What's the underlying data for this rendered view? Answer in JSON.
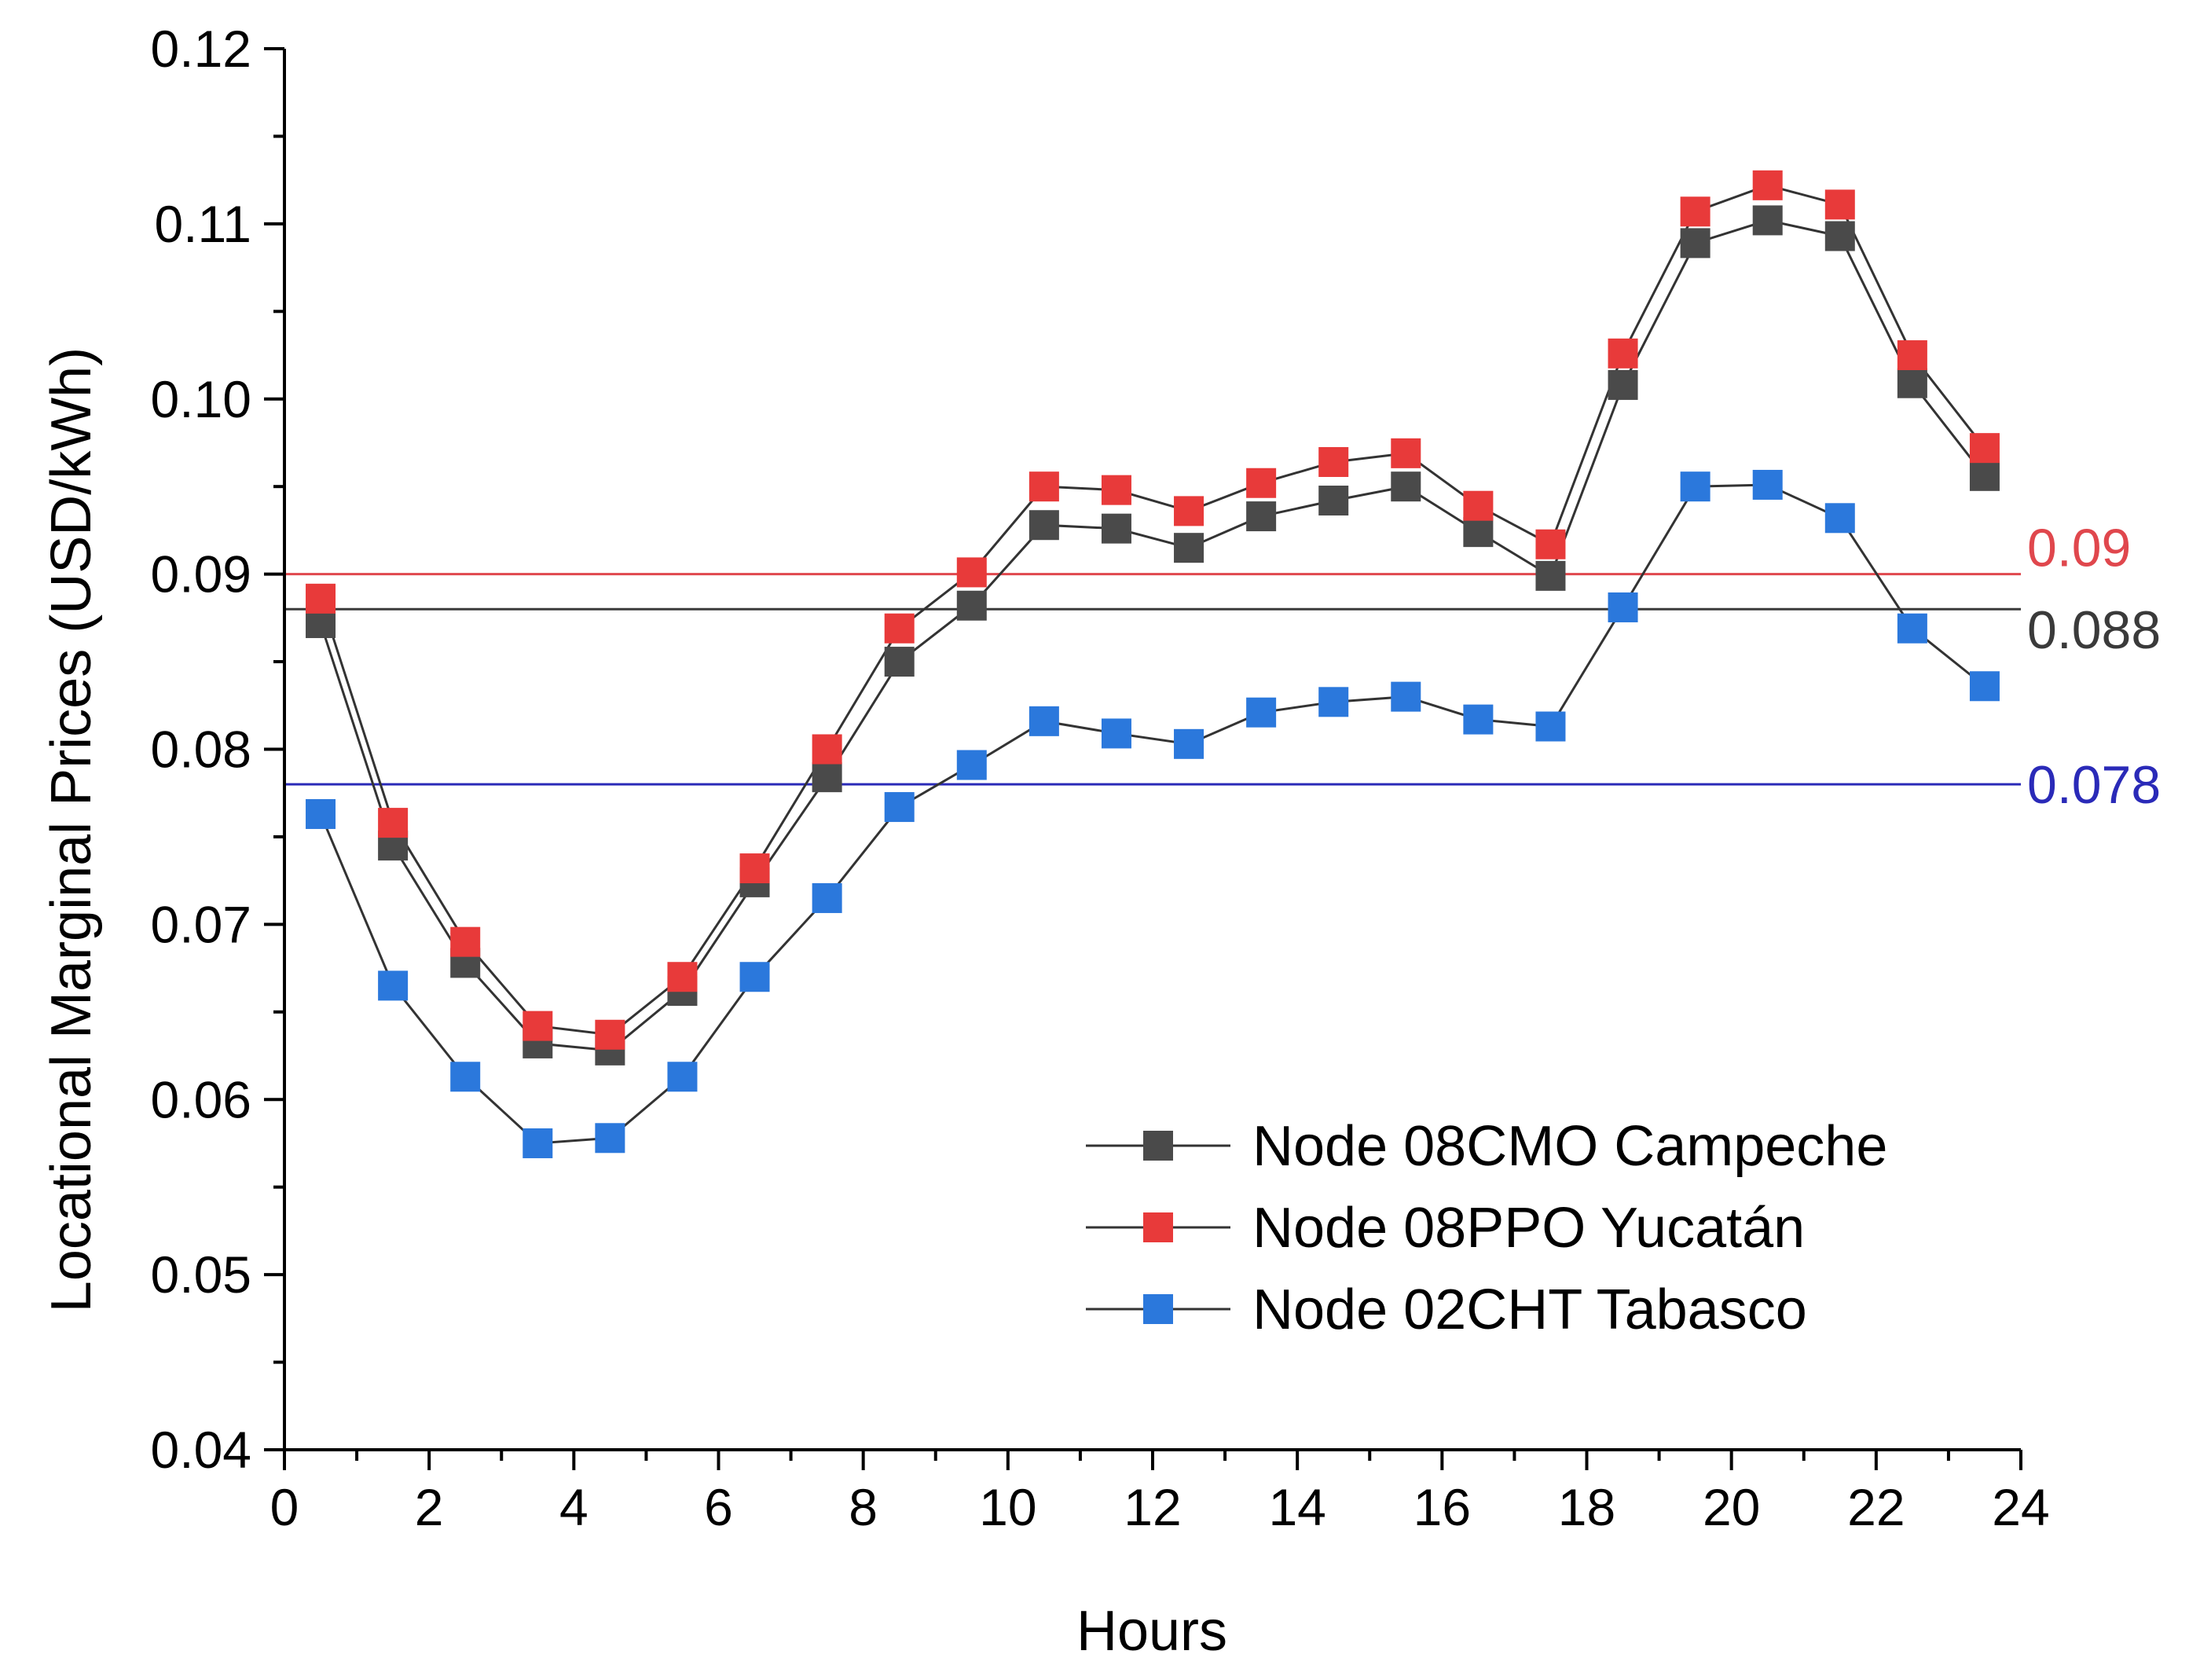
{
  "chart_data": {
    "type": "line",
    "title": "",
    "xlabel": "Hours",
    "ylabel": "Locational Marginal Prices (USD/kWh)",
    "xlim": [
      0,
      24
    ],
    "ylim": [
      0.04,
      0.12
    ],
    "x_ticks": [
      0,
      2,
      4,
      6,
      8,
      10,
      12,
      14,
      16,
      18,
      20,
      22,
      24
    ],
    "x_tick_labels": [
      "0",
      "2",
      "4",
      "6",
      "8",
      "10",
      "12",
      "14",
      "16",
      "18",
      "20",
      "22",
      "24"
    ],
    "y_ticks": [
      0.04,
      0.05,
      0.06,
      0.07,
      0.08,
      0.09,
      0.1,
      0.11,
      0.12
    ],
    "y_tick_labels": [
      "0.04",
      "0.05",
      "0.06",
      "0.07",
      "0.08",
      "0.09",
      "0.10",
      "0.11",
      "0.12"
    ],
    "grid": false,
    "legend_position": "bottom-right",
    "x": [
      0.5,
      1.5,
      2.5,
      3.5,
      4.5,
      5.5,
      6.5,
      7.5,
      8.5,
      9.5,
      10.5,
      11.5,
      12.5,
      13.5,
      14.5,
      15.5,
      16.5,
      17.5,
      18.5,
      19.5,
      20.5,
      21.5,
      22.5,
      23.5
    ],
    "series": [
      {
        "name": "Node 08CMO Campeche",
        "color": "#4a4a4a",
        "values": [
          0.0872,
          0.0745,
          0.0678,
          0.0632,
          0.0628,
          0.0662,
          0.0724,
          0.0784,
          0.085,
          0.0882,
          0.0928,
          0.0926,
          0.0915,
          0.0933,
          0.0942,
          0.095,
          0.0924,
          0.0899,
          0.1008,
          0.1089,
          0.1102,
          0.1093,
          0.1009,
          0.0956
        ]
      },
      {
        "name": "Node 08PPO Yucatán",
        "color": "#e83a3a",
        "values": [
          0.0886,
          0.0758,
          0.069,
          0.0642,
          0.0637,
          0.067,
          0.0732,
          0.08,
          0.0869,
          0.0901,
          0.095,
          0.0948,
          0.0936,
          0.0952,
          0.0964,
          0.0969,
          0.0939,
          0.0917,
          0.1026,
          0.1107,
          0.1122,
          0.1111,
          0.1025,
          0.0972
        ]
      },
      {
        "name": "Node 02CHT Tabasco",
        "color": "#2b78dc",
        "values": [
          0.0763,
          0.0665,
          0.0613,
          0.0575,
          0.0578,
          0.0613,
          0.067,
          0.0715,
          0.0767,
          0.0791,
          0.0816,
          0.0809,
          0.0803,
          0.0821,
          0.0827,
          0.083,
          0.0817,
          0.0813,
          0.0881,
          0.095,
          0.0951,
          0.0932,
          0.0869,
          0.0836
        ]
      }
    ],
    "reference_lines": [
      {
        "value": 0.09,
        "label": "0.09",
        "color": "#e0474d"
      },
      {
        "value": 0.088,
        "label": "0.088",
        "color": "#3a3a3a"
      },
      {
        "value": 0.078,
        "label": "0.078",
        "color": "#2a2ab8"
      }
    ]
  }
}
